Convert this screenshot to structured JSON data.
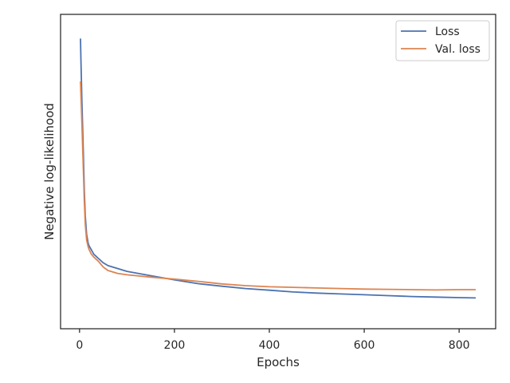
{
  "chart_data": {
    "type": "line",
    "title": "",
    "xlabel": "Epochs",
    "ylabel": "Negative log-likelihood",
    "xlim": [
      -40,
      877
    ],
    "ylim": [
      0,
      1
    ],
    "x_ticks": [
      0,
      200,
      400,
      600,
      800
    ],
    "y_ticks_shown": false,
    "grid": false,
    "legend_position": "top-right",
    "series": [
      {
        "name": "Loss",
        "color": "#4c72b0",
        "x": [
          2,
          3,
          5,
          8,
          10,
          12,
          15,
          18,
          20,
          25,
          30,
          40,
          50,
          60,
          80,
          100,
          150,
          200,
          250,
          300,
          350,
          400,
          450,
          500,
          550,
          600,
          650,
          700,
          750,
          800,
          835
        ],
        "y": [
          0.96,
          0.88,
          0.74,
          0.56,
          0.43,
          0.34,
          0.275,
          0.245,
          0.235,
          0.22,
          0.205,
          0.19,
          0.175,
          0.165,
          0.155,
          0.145,
          0.13,
          0.115,
          0.102,
          0.093,
          0.085,
          0.079,
          0.073,
          0.069,
          0.066,
          0.063,
          0.06,
          0.057,
          0.055,
          0.053,
          0.052
        ]
      },
      {
        "name": "Val. loss",
        "color": "#dd8452",
        "x": [
          2,
          3,
          5,
          8,
          10,
          12,
          15,
          18,
          20,
          25,
          30,
          40,
          50,
          60,
          80,
          100,
          150,
          200,
          250,
          300,
          350,
          400,
          450,
          500,
          550,
          600,
          650,
          700,
          750,
          800,
          835
        ],
        "y": [
          0.81,
          0.76,
          0.66,
          0.5,
          0.39,
          0.31,
          0.255,
          0.232,
          0.222,
          0.205,
          0.195,
          0.18,
          0.16,
          0.148,
          0.138,
          0.133,
          0.125,
          0.118,
          0.11,
          0.101,
          0.095,
          0.091,
          0.089,
          0.087,
          0.085,
          0.083,
          0.082,
          0.081,
          0.08,
          0.081,
          0.081
        ]
      }
    ]
  }
}
